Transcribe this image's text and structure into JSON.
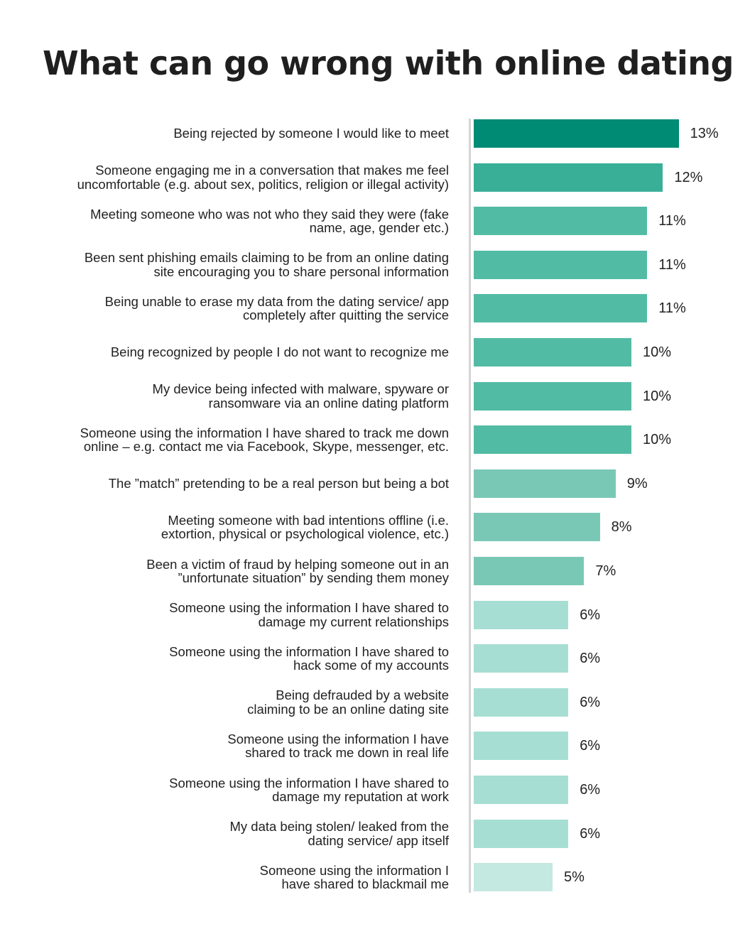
{
  "chart_data": {
    "type": "bar",
    "orientation": "horizontal",
    "title": "What can go wrong with online dating",
    "xlim": [
      0,
      13
    ],
    "grid": false,
    "legend": "none",
    "value_suffix": "%",
    "categories": [
      [
        "Being rejected by someone I would like to meet"
      ],
      [
        "Someone engaging me in a conversation that makes me feel",
        "uncomfortable (e.g. about sex, politics, religion or illegal activity)"
      ],
      [
        "Meeting someone who was not who they said they were (fake",
        "name, age, gender etc.)"
      ],
      [
        "Been sent phishing emails claiming to be from an online dating",
        "site encouraging you to share personal information"
      ],
      [
        "Being unable to erase my data from the dating service/ app",
        "completely after quitting the service"
      ],
      [
        "Being recognized by people I do not want to recognize me"
      ],
      [
        "My device being infected with malware, spyware or",
        "ransomware via an online dating platform"
      ],
      [
        "Someone using the information I have shared to track me down",
        "online – e.g. contact me via Facebook, Skype, messenger, etc."
      ],
      [
        "The ”match” pretending to be a real person but being a bot"
      ],
      [
        "Meeting someone with bad intentions offline (i.e.",
        "extortion, physical or psychological violence, etc.)"
      ],
      [
        "Been a victim of fraud by helping someone out in an",
        "”unfortunate situation” by sending them money"
      ],
      [
        "Someone using the information I have shared to",
        "damage my current relationships"
      ],
      [
        "Someone using the information I have shared to",
        "hack some of my accounts"
      ],
      [
        "Being defrauded by a website",
        "claiming to be an online dating site"
      ],
      [
        "Someone using the information I have",
        "shared to track me down in real life"
      ],
      [
        "Someone using the information I have shared to",
        "damage my reputation at work"
      ],
      [
        "My data being stolen/ leaked from the",
        "dating service/ app itself"
      ],
      [
        "Someone using the information I",
        "have shared to blackmail me"
      ]
    ],
    "values": [
      13,
      12,
      11,
      11,
      11,
      10,
      10,
      10,
      9,
      8,
      7,
      6,
      6,
      6,
      6,
      6,
      6,
      5
    ],
    "colors": {
      "13": "#008b74",
      "12": "#3aaf97",
      "11": "#52bba4",
      "10": "#52bba4",
      "9": "#79c8b5",
      "8": "#79c8b5",
      "7": "#79c8b5",
      "6": "#a7ded3",
      "5": "#c4e9e1"
    },
    "axis_color": "#d4d4d4"
  }
}
